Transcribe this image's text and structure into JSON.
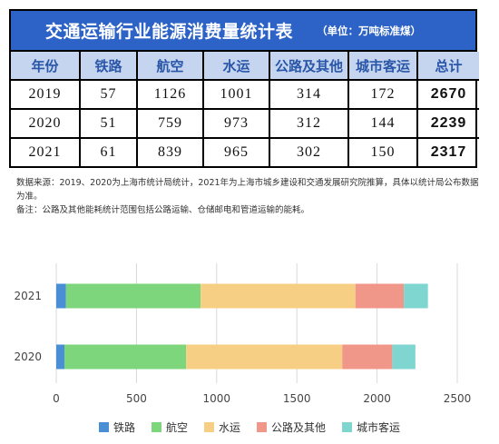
{
  "table": {
    "title": "交通运输行业能源消费量统计表",
    "unit": "（单位：万吨标准煤）",
    "headers": [
      "年份",
      "铁路",
      "航空",
      "水运",
      "公路及其他",
      "城市客运",
      "总计"
    ],
    "rows": [
      [
        "2019",
        "57",
        "1126",
        "1001",
        "314",
        "172",
        "2670"
      ],
      [
        "2020",
        "51",
        "759",
        "973",
        "312",
        "144",
        "2239"
      ],
      [
        "2021",
        "61",
        "839",
        "965",
        "302",
        "150",
        "2317"
      ]
    ]
  },
  "notes": {
    "source": "数据来源：2019、2020为上海市统计局统计，2021年为上海市城乡建设和交通发展研究院推算，具体以统计局公布数据为准。",
    "remark": "备注：公路及其他能耗统计范围包括公路运输、仓储邮电和管道运输的能耗。"
  },
  "chart_data": {
    "type": "bar",
    "orientation": "horizontal",
    "stacked": true,
    "categories": [
      "2021",
      "2020"
    ],
    "series": [
      {
        "name": "铁路",
        "values": [
          61,
          51
        ],
        "color": "#4a8fd6"
      },
      {
        "name": "航空",
        "values": [
          839,
          759
        ],
        "color": "#7ed67c"
      },
      {
        "name": "水运",
        "values": [
          965,
          973
        ],
        "color": "#f7cf84"
      },
      {
        "name": "公路及其他",
        "values": [
          302,
          312
        ],
        "color": "#f1978a"
      },
      {
        "name": "城市客运",
        "values": [
          150,
          144
        ],
        "color": "#7fd6d0"
      }
    ],
    "xticks": [
      "0",
      "500",
      "1000",
      "1500",
      "2000",
      "2500"
    ],
    "xlim": [
      0,
      2500
    ],
    "grid": true,
    "legend_position": "bottom"
  }
}
